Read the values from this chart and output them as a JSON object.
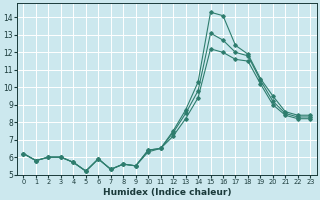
{
  "xlabel": "Humidex (Indice chaleur)",
  "bg_color": "#cce8ee",
  "grid_color": "#ffffff",
  "line_color": "#2e7d6e",
  "xlim_min": -0.5,
  "xlim_max": 23.5,
  "ylim_min": 5.0,
  "ylim_max": 14.8,
  "yticks": [
    5,
    6,
    7,
    8,
    9,
    10,
    11,
    12,
    13,
    14
  ],
  "xticks": [
    0,
    1,
    2,
    3,
    4,
    5,
    6,
    7,
    8,
    9,
    10,
    11,
    12,
    13,
    14,
    15,
    16,
    17,
    18,
    19,
    20,
    21,
    22,
    23
  ],
  "series1_x": [
    0,
    1,
    2,
    3,
    4,
    5,
    6,
    7,
    8,
    9,
    10,
    11,
    12,
    13,
    14,
    15,
    16,
    17,
    18,
    19,
    20,
    21,
    22,
    23
  ],
  "series1_y": [
    6.2,
    5.8,
    6.0,
    6.0,
    5.7,
    5.2,
    5.9,
    5.3,
    5.6,
    5.5,
    6.4,
    6.5,
    7.5,
    8.7,
    10.3,
    14.3,
    14.1,
    12.4,
    11.9,
    10.5,
    9.5,
    8.6,
    8.4,
    8.4
  ],
  "series2_x": [
    0,
    1,
    2,
    3,
    4,
    5,
    6,
    7,
    8,
    9,
    10,
    11,
    12,
    13,
    14,
    15,
    16,
    17,
    18,
    19,
    20,
    21,
    22,
    23
  ],
  "series2_y": [
    6.2,
    5.8,
    6.0,
    6.0,
    5.7,
    5.2,
    5.9,
    5.3,
    5.6,
    5.5,
    6.4,
    6.5,
    7.4,
    8.5,
    9.8,
    13.1,
    12.7,
    12.0,
    11.8,
    10.4,
    9.2,
    8.5,
    8.3,
    8.3
  ],
  "series3_x": [
    0,
    1,
    2,
    3,
    4,
    5,
    6,
    7,
    8,
    9,
    10,
    11,
    12,
    13,
    14,
    15,
    16,
    17,
    18,
    19,
    20,
    21,
    22,
    23
  ],
  "series3_y": [
    6.2,
    5.8,
    6.0,
    6.0,
    5.7,
    5.2,
    5.9,
    5.3,
    5.6,
    5.5,
    6.3,
    6.5,
    7.2,
    8.2,
    9.4,
    12.2,
    12.0,
    11.6,
    11.5,
    10.2,
    9.0,
    8.4,
    8.2,
    8.2
  ]
}
